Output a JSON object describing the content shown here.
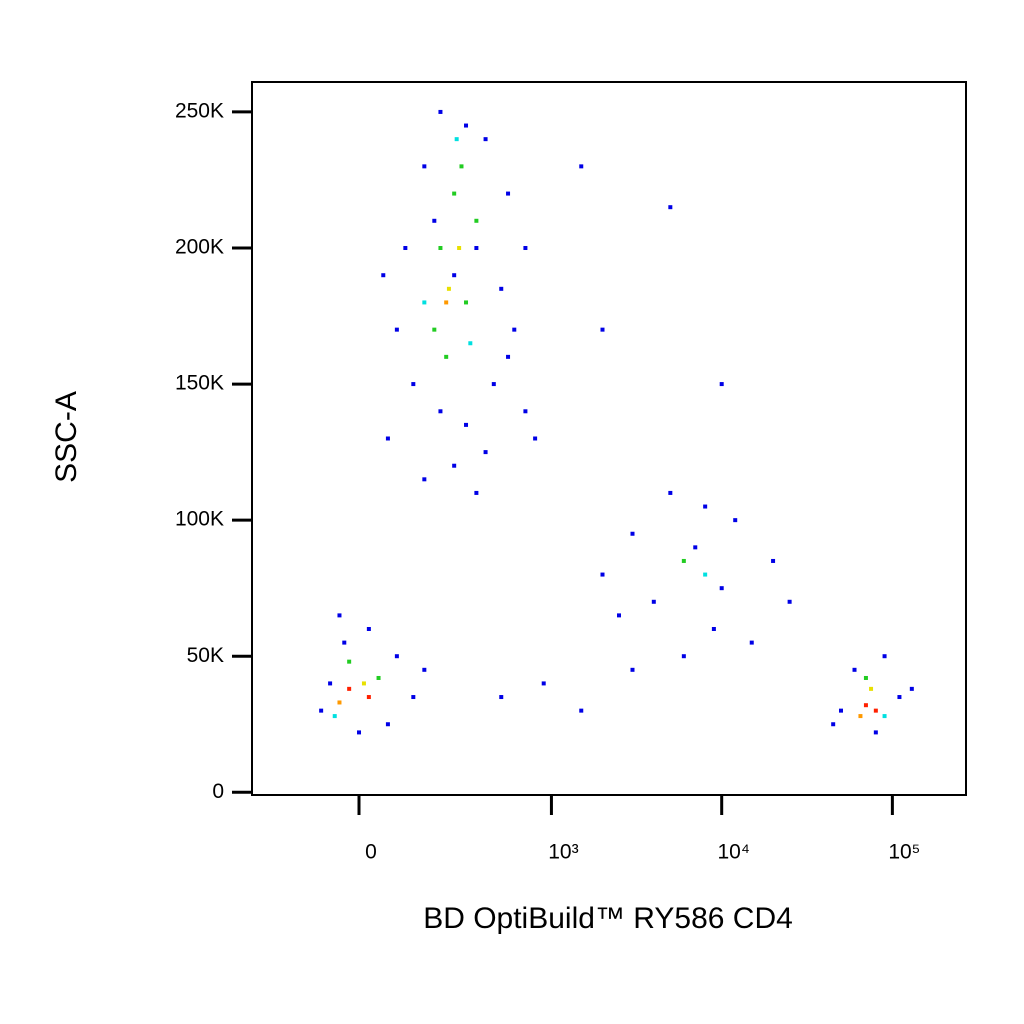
{
  "chart_data": {
    "type": "scatter",
    "x_label": "BD OptiBuild™ RY586 CD4",
    "y_label": "SSC-A",
    "xscale": "biexponential",
    "xlim": [
      -300,
      270000
    ],
    "ylim": [
      -1000,
      261000
    ],
    "xticks": [
      0,
      {
        "value": 1000,
        "label": "10³"
      },
      {
        "value": 10000,
        "label": "10⁴"
      },
      {
        "value": 100000,
        "label": "10⁵"
      }
    ],
    "yticks": [
      0,
      {
        "value": 50000,
        "label": "50K"
      },
      {
        "value": 100000,
        "label": "100K"
      },
      {
        "value": 150000,
        "label": "150K"
      },
      {
        "value": 200000,
        "label": "200K"
      },
      {
        "value": 250000,
        "label": "250K"
      }
    ],
    "series": [
      {
        "color": "#0000e6",
        "x": [
          150,
          200,
          300,
          400,
          550,
          100,
          180,
          250,
          350,
          500,
          600,
          80,
          120,
          200,
          300,
          450,
          550,
          60,
          150,
          250,
          400,
          700,
          50,
          700,
          350,
          -60,
          -30,
          20,
          80,
          120,
          -80,
          0,
          60,
          150,
          -40,
          2000,
          3000,
          5000,
          8000,
          12000,
          20000,
          25000,
          15000,
          6000,
          3000,
          2500,
          10000,
          4000,
          7000,
          9000,
          50000,
          60000,
          90000,
          110000,
          80000,
          45000,
          130000,
          900,
          500,
          1500,
          2000,
          10000,
          5000,
          1500,
          800
        ],
        "values": [
          230000,
          250000,
          245000,
          240000,
          220000,
          200000,
          210000,
          190000,
          200000,
          185000,
          170000,
          170000,
          150000,
          140000,
          135000,
          150000,
          160000,
          130000,
          115000,
          120000,
          125000,
          140000,
          190000,
          200000,
          110000,
          40000,
          55000,
          60000,
          50000,
          35000,
          30000,
          22000,
          25000,
          45000,
          65000,
          80000,
          95000,
          110000,
          105000,
          100000,
          85000,
          70000,
          55000,
          50000,
          45000,
          65000,
          75000,
          70000,
          90000,
          60000,
          30000,
          45000,
          50000,
          35000,
          22000,
          25000,
          38000,
          40000,
          35000,
          30000,
          170000,
          150000,
          215000,
          230000,
          130000
        ]
      },
      {
        "color": "#22cc22",
        "x": [
          200,
          250,
          300,
          180,
          350,
          220,
          280,
          -20,
          40,
          6000,
          70000
        ],
        "values": [
          200000,
          220000,
          180000,
          170000,
          210000,
          160000,
          230000,
          48000,
          42000,
          85000,
          42000
        ]
      },
      {
        "color": "#00e0e0",
        "x": [
          150,
          320,
          260,
          8000,
          -50,
          90000
        ],
        "values": [
          180000,
          165000,
          240000,
          80000,
          28000,
          28000
        ]
      },
      {
        "color": "#e8e000",
        "x": [
          230,
          270,
          10,
          75000
        ],
        "values": [
          185000,
          200000,
          40000,
          38000
        ]
      },
      {
        "color": "#ff9900",
        "x": [
          220,
          -40,
          65000
        ],
        "values": [
          180000,
          33000,
          28000
        ]
      },
      {
        "color": "#ff2000",
        "x": [
          -20,
          20,
          70000,
          80000
        ],
        "values": [
          38000,
          35000,
          32000,
          30000
        ]
      }
    ]
  }
}
